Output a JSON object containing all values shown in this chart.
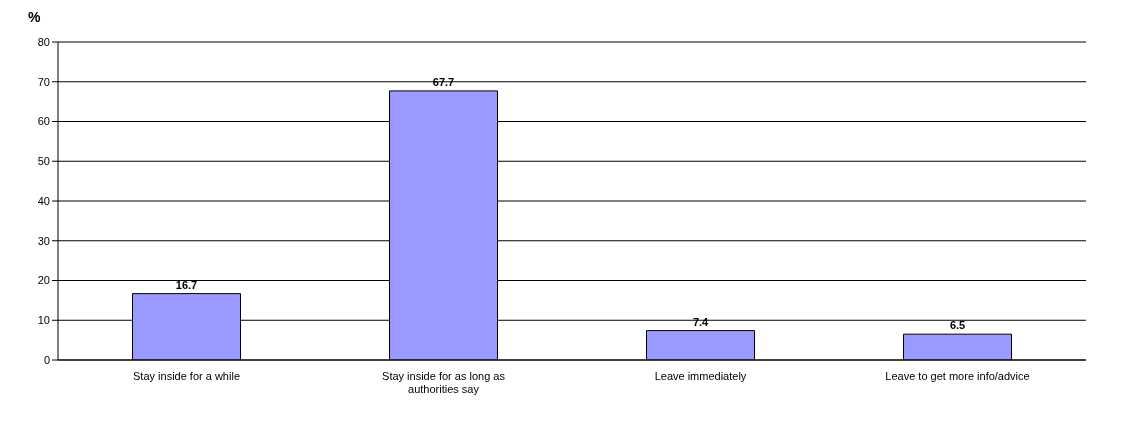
{
  "chart_data": {
    "type": "bar",
    "ylabel": "%",
    "categories": [
      "Stay inside for a while",
      "Stay inside for as long as authorities say",
      "Leave immediately",
      "Leave to get more info/advice"
    ],
    "values": [
      16.7,
      67.7,
      7.4,
      6.5
    ],
    "color": "#9999ff",
    "ylim": [
      0,
      80
    ],
    "yticks": [
      0,
      10,
      20,
      30,
      40,
      50,
      60,
      70,
      80
    ],
    "grid": "y",
    "data_labels": true
  }
}
